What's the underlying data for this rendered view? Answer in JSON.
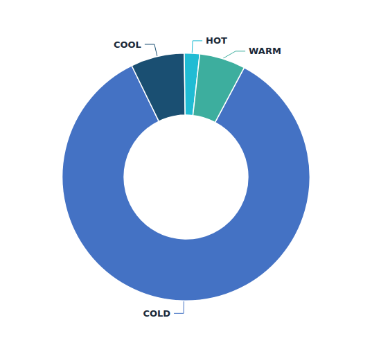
{
  "chart_data": {
    "type": "pie",
    "categories": [
      "COLD",
      "COOL",
      "HOT",
      "WARM"
    ],
    "values": [
      85,
      7,
      2,
      6
    ],
    "colors": [
      "#4472C4",
      "#1A4F72",
      "#20BCD4",
      "#3DAE9E"
    ]
  }
}
